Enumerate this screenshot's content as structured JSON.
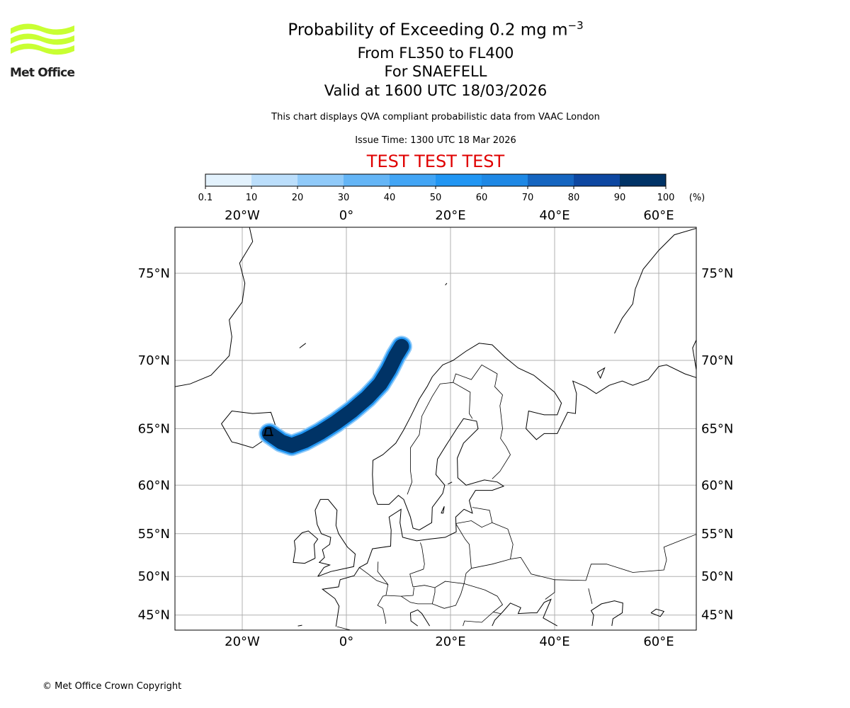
{
  "title": {
    "main": "Probability of Exceeding 0.2 mg m",
    "main_exponent": "−3",
    "levels": "From FL350 to FL400",
    "volcano": "For SNAEFELL",
    "valid": "Valid at 1600 UTC 18/03/2026"
  },
  "subtitle": "This chart displays QVA compliant probabilistic data from VAAC London",
  "issue_time": "Issue Time: 1300 UTC 18 Mar 2026",
  "test_banner": "TEST TEST TEST",
  "logo": {
    "text": "Met Office",
    "color": "#c8ff32"
  },
  "copyright": "© Met Office Crown Copyright",
  "chart_data": {
    "type": "heatmap",
    "colorbar": {
      "ticks": [
        "0.1",
        "10",
        "20",
        "30",
        "40",
        "50",
        "60",
        "70",
        "80",
        "90",
        "100"
      ],
      "unit": "(%)",
      "colors": [
        "#e3f2fd",
        "#bbdefb",
        "#90caf9",
        "#64b5f6",
        "#42a5f5",
        "#2196f3",
        "#1e88e5",
        "#1565c0",
        "#0d47a1",
        "#003366"
      ]
    },
    "lon_ticks": [
      {
        "value": -20,
        "label": "20°W"
      },
      {
        "value": 0,
        "label": "0°"
      },
      {
        "value": 20,
        "label": "20°E"
      },
      {
        "value": 40,
        "label": "40°E"
      },
      {
        "value": 60,
        "label": "60°E"
      }
    ],
    "lat_ticks": [
      {
        "value": 75,
        "label": "75°N"
      },
      {
        "value": 70,
        "label": "70°N"
      },
      {
        "value": 65,
        "label": "65°N"
      },
      {
        "value": 60,
        "label": "60°N"
      },
      {
        "value": 55,
        "label": "55°N"
      },
      {
        "value": 50,
        "label": "50°N"
      },
      {
        "value": 45,
        "label": "45°N"
      }
    ],
    "lon_range": [
      -33,
      67
    ],
    "lat_range": [
      43.5,
      77.5
    ],
    "projection": "mercator",
    "grid": true,
    "plume": {
      "probability_percent": 100,
      "centerline_lonlat": [
        [
          -14.8,
          64.6
        ],
        [
          -12.5,
          63.9
        ],
        [
          -10.5,
          63.6
        ],
        [
          -8,
          64.0
        ],
        [
          -5,
          64.7
        ],
        [
          -2,
          65.5
        ],
        [
          1,
          66.4
        ],
        [
          4,
          67.4
        ],
        [
          6.5,
          68.4
        ],
        [
          8.2,
          69.4
        ],
        [
          9.5,
          70.3
        ],
        [
          10.6,
          70.9
        ]
      ]
    }
  }
}
